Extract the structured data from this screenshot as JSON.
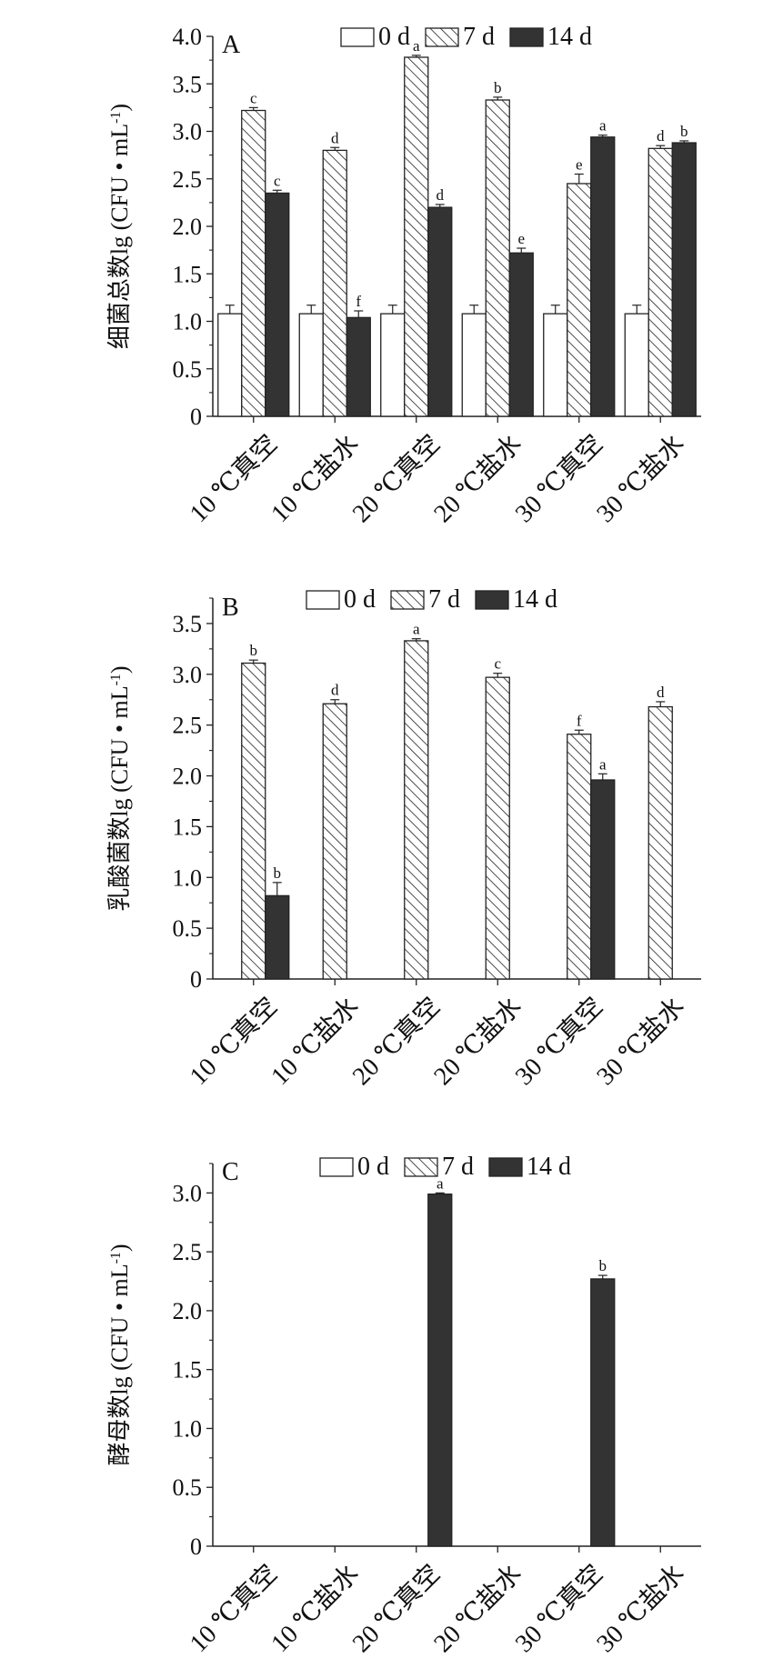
{
  "chart_data": [
    {
      "panel": "A",
      "type": "bar",
      "categories": [
        "10 ℃真空",
        "10 ℃盐水",
        "20 ℃真空",
        "20 ℃盐水",
        "30 ℃真空",
        "30 ℃盐水"
      ],
      "ylabel_main": "细菌总数lg (CFU • mL",
      "ylabel_sup": "-1",
      "ylabel_close": ")",
      "ylim": [
        0,
        4
      ],
      "yticks": [
        "0",
        "0.5",
        "1.0",
        "1.5",
        "2.0",
        "2.5",
        "3.0",
        "3.5",
        "4.0"
      ],
      "series": [
        {
          "name": "0 d",
          "values": [
            1.08,
            1.08,
            1.08,
            1.08,
            1.08,
            1.08
          ],
          "errors": [
            0.09,
            0.09,
            0.09,
            0.09,
            0.09,
            0.09
          ],
          "letters": [
            "",
            "",
            "",
            "",
            "",
            ""
          ]
        },
        {
          "name": "7 d",
          "values": [
            3.22,
            2.8,
            3.78,
            3.33,
            2.45,
            2.82
          ],
          "errors": [
            0.03,
            0.03,
            0.02,
            0.03,
            0.1,
            0.03
          ],
          "letters": [
            "c",
            "d",
            "a",
            "b",
            "e",
            "d"
          ]
        },
        {
          "name": "14 d",
          "values": [
            2.35,
            1.04,
            2.2,
            1.72,
            2.94,
            2.88
          ],
          "errors": [
            0.03,
            0.07,
            0.03,
            0.05,
            0.02,
            0.02
          ],
          "letters": [
            "c",
            "f",
            "d",
            "e",
            "a",
            "b"
          ]
        }
      ]
    },
    {
      "panel": "B",
      "type": "bar",
      "categories": [
        "10 ℃真空",
        "10 ℃盐水",
        "20 ℃真空",
        "20 ℃盐水",
        "30 ℃真空",
        "30 ℃盐水"
      ],
      "ylabel_main": "乳酸菌数lg (CFU • mL",
      "ylabel_sup": "-1",
      "ylabel_close": ")",
      "ylim": [
        0,
        3.75
      ],
      "yticks": [
        "0",
        "0.5",
        "1.0",
        "1.5",
        "2.0",
        "2.5",
        "3.0",
        "3.5"
      ],
      "series": [
        {
          "name": "0 d",
          "values": [
            0,
            0,
            0,
            0,
            0,
            0
          ],
          "errors": [
            0,
            0,
            0,
            0,
            0,
            0
          ],
          "letters": [
            "",
            "",
            "",
            "",
            "",
            ""
          ]
        },
        {
          "name": "7 d",
          "values": [
            3.11,
            2.71,
            3.33,
            2.97,
            2.41,
            2.68
          ],
          "errors": [
            0.03,
            0.04,
            0.02,
            0.04,
            0.04,
            0.05
          ],
          "letters": [
            "b",
            "d",
            "a",
            "c",
            "f",
            "d"
          ]
        },
        {
          "name": "14 d",
          "values": [
            0.82,
            0,
            0,
            0,
            1.96,
            0
          ],
          "errors": [
            0.13,
            0,
            0,
            0,
            0.06,
            0
          ],
          "letters": [
            "b",
            "",
            "",
            "",
            "a",
            ""
          ]
        }
      ]
    },
    {
      "panel": "C",
      "type": "bar",
      "categories": [
        "10 ℃真空",
        "10 ℃盐水",
        "20 ℃真空",
        "20 ℃盐水",
        "30 ℃真空",
        "30 ℃盐水"
      ],
      "ylabel_main": "酵母数lg (CFU • mL",
      "ylabel_sup": "-1",
      "ylabel_close": ")",
      "ylim": [
        0,
        3.25
      ],
      "yticks": [
        "0",
        "0.5",
        "1.0",
        "1.5",
        "2.0",
        "2.5",
        "3.0"
      ],
      "series": [
        {
          "name": "0 d",
          "values": [
            0,
            0,
            0,
            0,
            0,
            0
          ],
          "errors": [
            0,
            0,
            0,
            0,
            0,
            0
          ],
          "letters": [
            "",
            "",
            "",
            "",
            "",
            ""
          ]
        },
        {
          "name": "7 d",
          "values": [
            0,
            0,
            0,
            0,
            0,
            0
          ],
          "errors": [
            0,
            0,
            0,
            0,
            0,
            0
          ],
          "letters": [
            "",
            "",
            "",
            "",
            "",
            ""
          ]
        },
        {
          "name": "14 d",
          "values": [
            0,
            0,
            2.99,
            0,
            2.27,
            0
          ],
          "errors": [
            0,
            0,
            0.01,
            0,
            0.03,
            0
          ],
          "letters": [
            "",
            "",
            "a",
            "",
            "b",
            ""
          ]
        }
      ]
    }
  ],
  "colors": {
    "axis": "#222222",
    "bar_dark": "#333333",
    "hatch": "#222222",
    "bar_open": "#ffffff"
  }
}
